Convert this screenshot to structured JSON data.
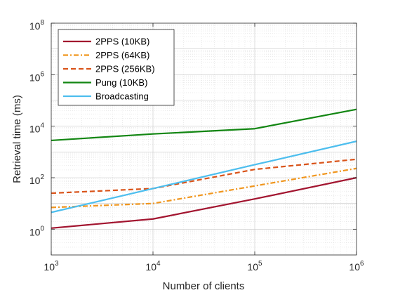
{
  "chart_data": {
    "type": "line",
    "title": "",
    "xlabel": "Number of clients",
    "ylabel": "Retrieval time (ms)",
    "xscale": "log",
    "yscale": "log",
    "xlim": [
      1000,
      1000000
    ],
    "ylim": [
      0.1,
      100000000
    ],
    "grid": true,
    "box": true,
    "legend_position": "top-left",
    "x_ticks": [
      {
        "value": 1000,
        "base": "10",
        "exp": "3"
      },
      {
        "value": 10000,
        "base": "10",
        "exp": "4"
      },
      {
        "value": 100000,
        "base": "10",
        "exp": "5"
      },
      {
        "value": 1000000,
        "base": "10",
        "exp": "6"
      }
    ],
    "y_ticks": [
      {
        "value": 1,
        "base": "10",
        "exp": "0"
      },
      {
        "value": 100,
        "base": "10",
        "exp": "2"
      },
      {
        "value": 10000,
        "base": "10",
        "exp": "4"
      },
      {
        "value": 1000000,
        "base": "10",
        "exp": "6"
      },
      {
        "value": 100000000,
        "base": "10",
        "exp": "8"
      }
    ],
    "x": [
      1000,
      10000,
      100000,
      1000000
    ],
    "series": [
      {
        "name": "2PPS (10KB)",
        "values": [
          1.1,
          2.5,
          15,
          100
        ],
        "color": "#a2142f",
        "style": "solid"
      },
      {
        "name": "2PPS (64KB)",
        "values": [
          7,
          10,
          48,
          230
        ],
        "color": "#f0961e",
        "style": "dashdot"
      },
      {
        "name": "2PPS (256KB)",
        "values": [
          25,
          38,
          210,
          520
        ],
        "color": "#d95319",
        "style": "dashed"
      },
      {
        "name": "Pung (10KB)",
        "values": [
          2800,
          5000,
          8000,
          45000
        ],
        "color": "#128612",
        "style": "solid"
      },
      {
        "name": "Broadcasting",
        "values": [
          4.5,
          38,
          320,
          2600
        ],
        "color": "#4dbeee",
        "style": "solid"
      }
    ]
  }
}
